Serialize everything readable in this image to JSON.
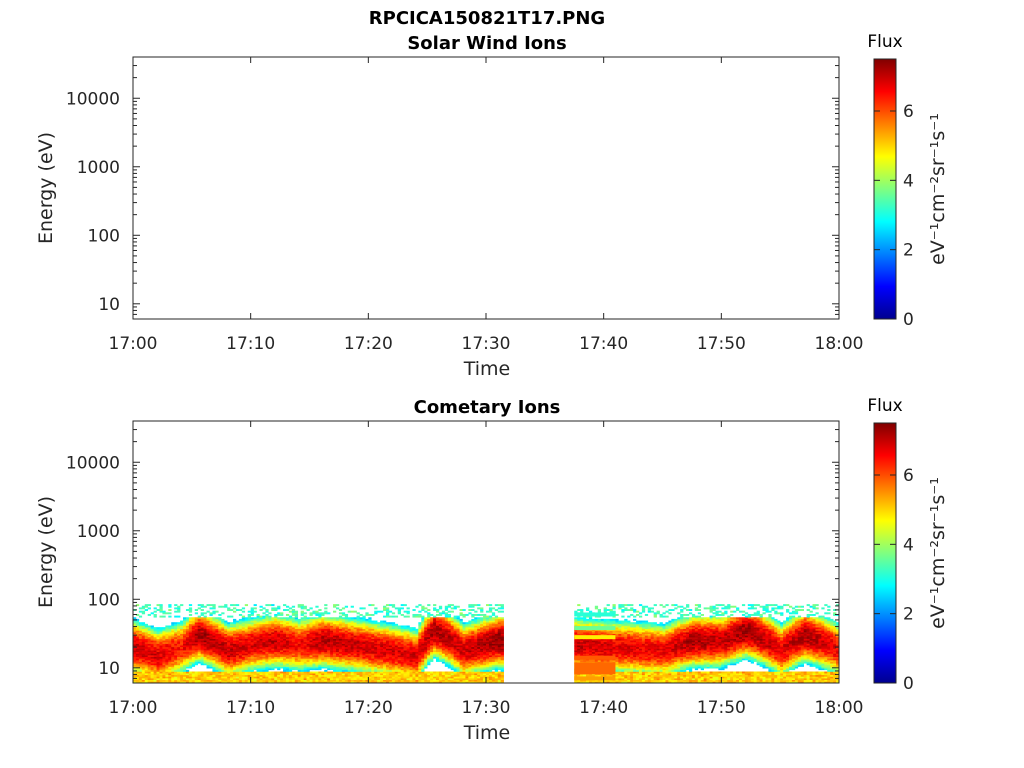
{
  "figure_title": "RPCICA150821T17.PNG",
  "chart_data": [
    {
      "type": "heatmap",
      "title": "Solar Wind Ions",
      "xlabel": "Time",
      "ylabel": "Energy (eV)",
      "y_scale": "log",
      "ylim": [
        6,
        40000
      ],
      "xlim": [
        "17:00",
        "18:00"
      ],
      "x_ticks": [
        "17:00",
        "17:10",
        "17:20",
        "17:30",
        "17:40",
        "17:50",
        "18:00"
      ],
      "y_ticks": [
        "10",
        "100",
        "1000",
        "10000"
      ],
      "colorbar": {
        "title": "Flux",
        "label": "eV⁻¹cm⁻²sr⁻¹s⁻¹",
        "ticks": [
          "0",
          "2",
          "4",
          "6"
        ],
        "range": [
          0,
          7.5
        ],
        "colormap": "jet"
      },
      "grid": false,
      "data_present": false,
      "cells": []
    },
    {
      "type": "heatmap",
      "title": "Cometary Ions",
      "xlabel": "Time",
      "ylabel": "Energy (eV)",
      "y_scale": "log",
      "ylim": [
        6,
        40000
      ],
      "xlim": [
        "17:00",
        "18:00"
      ],
      "x_ticks": [
        "17:00",
        "17:10",
        "17:20",
        "17:30",
        "17:40",
        "17:50",
        "18:00"
      ],
      "y_ticks": [
        "10",
        "100",
        "1000",
        "10000"
      ],
      "colorbar": {
        "title": "Flux",
        "label": "eV⁻¹cm⁻²sr⁻¹s⁻¹",
        "ticks": [
          "0",
          "2",
          "4",
          "6"
        ],
        "range": [
          0,
          7.5
        ],
        "colormap": "jet"
      },
      "grid": false,
      "data_present": true,
      "data_gap": [
        "17:31.5",
        "17:37.5"
      ],
      "flux_profile_note": "peak flux ~7 near 15-30 eV, decreasing to ~3 near 80 eV",
      "peak_energy_by_minute": [
        {
          "t": 0,
          "peak_eV": 20,
          "peak_flux": 7.0
        },
        {
          "t": 2,
          "peak_eV": 15,
          "peak_flux": 6.8
        },
        {
          "t": 4,
          "peak_eV": 20,
          "peak_flux": 6.5
        },
        {
          "t": 5.5,
          "peak_eV": 30,
          "peak_flux": 7.2
        },
        {
          "t": 8,
          "peak_eV": 18,
          "peak_flux": 7.0
        },
        {
          "t": 10,
          "peak_eV": 22,
          "peak_flux": 6.8
        },
        {
          "t": 12,
          "peak_eV": 25,
          "peak_flux": 7.0
        },
        {
          "t": 14,
          "peak_eV": 22,
          "peak_flux": 6.6
        },
        {
          "t": 16,
          "peak_eV": 25,
          "peak_flux": 7.1
        },
        {
          "t": 20,
          "peak_eV": 20,
          "peak_flux": 6.9
        },
        {
          "t": 24,
          "peak_eV": 15,
          "peak_flux": 6.8
        },
        {
          "t": 25.5,
          "peak_eV": 35,
          "peak_flux": 7.2
        },
        {
          "t": 28,
          "peak_eV": 18,
          "peak_flux": 6.9
        },
        {
          "t": 31,
          "peak_eV": 25,
          "peak_flux": 7.4
        },
        {
          "t": 41,
          "peak_eV": 20,
          "peak_flux": 6.8
        },
        {
          "t": 45,
          "peak_eV": 18,
          "peak_flux": 6.7
        },
        {
          "t": 47.5,
          "peak_eV": 25,
          "peak_flux": 7.2
        },
        {
          "t": 50,
          "peak_eV": 25,
          "peak_flux": 7.0
        },
        {
          "t": 52,
          "peak_eV": 35,
          "peak_flux": 7.3
        },
        {
          "t": 55,
          "peak_eV": 18,
          "peak_flux": 6.8
        },
        {
          "t": 57,
          "peak_eV": 30,
          "peak_flux": 7.2
        },
        {
          "t": 60,
          "peak_eV": 18,
          "peak_flux": 6.6
        }
      ]
    }
  ]
}
